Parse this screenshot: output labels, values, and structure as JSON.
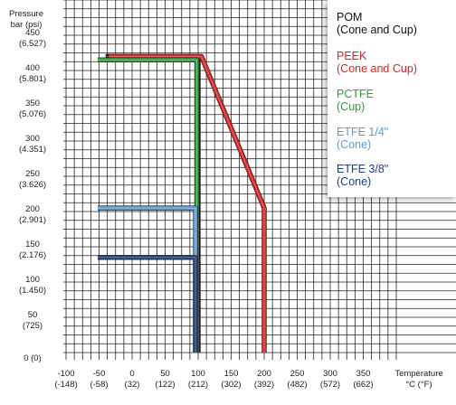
{
  "chart_data": {
    "type": "line",
    "ylabel": [
      "Pressure",
      "bar (psi)"
    ],
    "xlabel": [
      "Temperature",
      "°C (°F)"
    ],
    "y_ticks": [
      {
        "value": 450,
        "label": [
          "450",
          "(6.527)"
        ]
      },
      {
        "value": 400,
        "label": [
          "400",
          "(5.801)"
        ]
      },
      {
        "value": 350,
        "label": [
          "350",
          "(5.076)"
        ]
      },
      {
        "value": 300,
        "label": [
          "300",
          "(4.351)"
        ]
      },
      {
        "value": 250,
        "label": [
          "250",
          "(3.626)"
        ]
      },
      {
        "value": 200,
        "label": [
          "200",
          "(2.901)"
        ]
      },
      {
        "value": 150,
        "label": [
          "150",
          "(2.176)"
        ]
      },
      {
        "value": 100,
        "label": [
          "100",
          "(1.450)"
        ]
      },
      {
        "value": 50,
        "label": [
          "50",
          "(725)"
        ]
      },
      {
        "value": 0,
        "label": [
          "0 (0)"
        ]
      }
    ],
    "x_ticks": [
      {
        "value": -100,
        "label": [
          "-100",
          "(-148)"
        ]
      },
      {
        "value": -50,
        "label": [
          "-50",
          "(-58)"
        ]
      },
      {
        "value": 0,
        "label": [
          "0",
          "(32)"
        ]
      },
      {
        "value": 50,
        "label": [
          "50",
          "(122)"
        ]
      },
      {
        "value": 100,
        "label": [
          "100",
          "(212)"
        ]
      },
      {
        "value": 150,
        "label": [
          "150",
          "(302)"
        ]
      },
      {
        "value": 200,
        "label": [
          "200",
          "(392)"
        ]
      },
      {
        "value": 250,
        "label": [
          "250",
          "(482)"
        ]
      },
      {
        "value": 300,
        "label": [
          "300",
          "(572)"
        ]
      },
      {
        "value": 350,
        "label": [
          "350",
          "(662)"
        ]
      }
    ],
    "xlim": [
      -100,
      350
    ],
    "ylim": [
      0,
      450
    ],
    "grid": true,
    "legend_position": "top-right",
    "series": [
      {
        "name": [
          "POM",
          "(Cone and Cup)"
        ],
        "color": "#111111",
        "points": [
          [
            -40,
            420
          ],
          [
            100,
            420
          ],
          [
            100,
            0
          ]
        ]
      },
      {
        "name": [
          "PEEK",
          "(Cone and Cup)"
        ],
        "color": "#e02020",
        "points": [
          [
            -35,
            420
          ],
          [
            105,
            420
          ],
          [
            200,
            205
          ],
          [
            200,
            0
          ]
        ]
      },
      {
        "name": [
          "PCTFE",
          "(Cup)"
        ],
        "color": "#2f9e3a",
        "points": [
          [
            -52,
            415
          ],
          [
            98,
            415
          ],
          [
            98,
            0
          ]
        ]
      },
      {
        "name": [
          "ETFE 1/4\"",
          "(Cone)"
        ],
        "color": "#5b9bd5",
        "points": [
          [
            -52,
            205
          ],
          [
            96,
            205
          ],
          [
            96,
            0
          ]
        ]
      },
      {
        "name": [
          "ETFE 3/8\"",
          "(Cone)"
        ],
        "color": "#1f3f7a",
        "points": [
          [
            -52,
            135
          ],
          [
            96,
            135
          ],
          [
            96,
            0
          ]
        ]
      }
    ]
  }
}
